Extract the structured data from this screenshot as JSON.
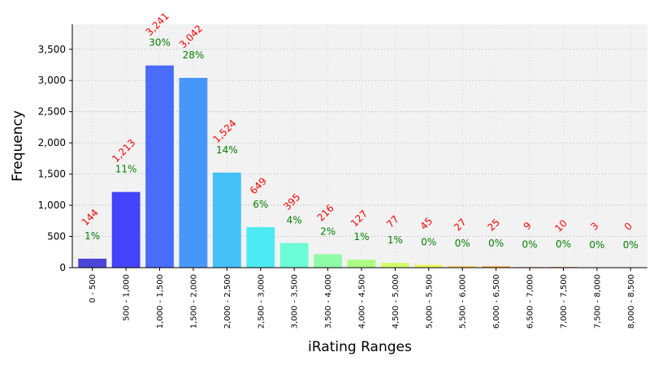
{
  "chart_data": {
    "type": "bar",
    "xlabel": "iRating Ranges",
    "ylabel": "Frequency",
    "ylim": [
      0,
      3900
    ],
    "yticks": [
      0,
      500,
      1000,
      1500,
      2000,
      2500,
      3000,
      3500
    ],
    "ytick_labels": [
      "0",
      "500",
      "1,000",
      "1,500",
      "2,000",
      "2,500",
      "3,000",
      "3,500"
    ],
    "grid": true,
    "categories": [
      "0 - 500",
      "500 - 1,000",
      "1,000 - 1,500",
      "1,500 - 2,000",
      "2,000 - 2,500",
      "2,500 - 3,000",
      "3,000 - 3,500",
      "3,500 - 4,000",
      "4,000 - 4,500",
      "4,500 - 5,000",
      "5,000 - 5,500",
      "5,500 - 6,000",
      "6,000 - 6,500",
      "6,500 - 7,000",
      "7,000 - 7,500",
      "7,500 - 8,000",
      "8,000 - 8,500"
    ],
    "values": [
      144,
      1213,
      3241,
      3042,
      1524,
      649,
      395,
      216,
      127,
      77,
      45,
      27,
      25,
      9,
      10,
      3,
      0
    ],
    "count_labels": [
      "144",
      "1,213",
      "3,241",
      "3,042",
      "1,524",
      "649",
      "395",
      "216",
      "127",
      "77",
      "45",
      "27",
      "25",
      "9",
      "10",
      "3",
      "0"
    ],
    "percent_labels": [
      "1%",
      "11%",
      "30%",
      "28%",
      "14%",
      "6%",
      "4%",
      "2%",
      "1%",
      "1%",
      "0%",
      "0%",
      "0%",
      "0%",
      "0%",
      "0%",
      "0%"
    ],
    "bar_colors": [
      "#4b44d8",
      "#4343fb",
      "#4a6cfb",
      "#4797fb",
      "#45c0f6",
      "#4deaf3",
      "#6bfbd7",
      "#8ffba8",
      "#acfb83",
      "#d4fb6a",
      "#f0f65e",
      "#fbd55a",
      "#fbb14c",
      "#fb8d3c",
      "#fb6a2c",
      "#fb4c22",
      "#f0351b"
    ],
    "count_label_color": "#ff0000",
    "percent_label_color": "#008000"
  }
}
